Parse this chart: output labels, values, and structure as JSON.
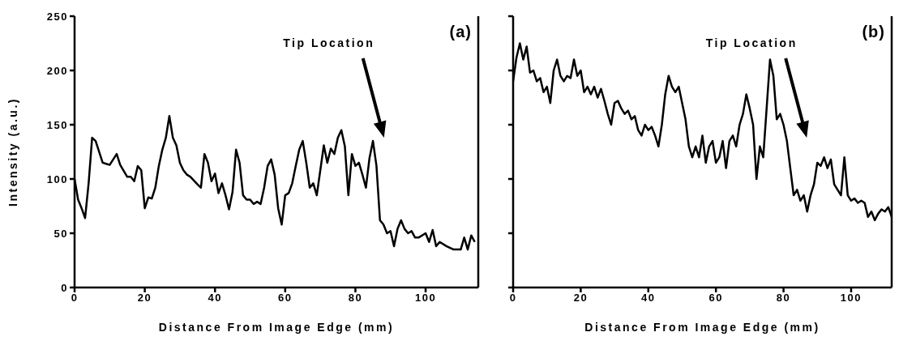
{
  "chart_data": [
    {
      "type": "line",
      "xlabel": "Distance From Image Edge (mm)",
      "ylabel": "Intensity (a.u.)",
      "xlim": [
        0,
        115
      ],
      "xticks": [
        0,
        20,
        40,
        60,
        80,
        100
      ],
      "ylim": [
        0,
        250
      ],
      "yticks": [
        0,
        50,
        100,
        150,
        200,
        250
      ],
      "marker": "none",
      "line_style": "solid",
      "annotations": [
        "(a)",
        "Tip Location"
      ],
      "series": [
        {
          "color": "#000000",
          "x": [
            0,
            1,
            2,
            3,
            4,
            5,
            6,
            8,
            9,
            10,
            11,
            12,
            13,
            15,
            16,
            17,
            18,
            19,
            20,
            21,
            22,
            23,
            24,
            25,
            26,
            27,
            28,
            29,
            30,
            31,
            32,
            33,
            35,
            36,
            37,
            38,
            39,
            40,
            41,
            42,
            43,
            44,
            45,
            46,
            47,
            48,
            49,
            50,
            51,
            52,
            53,
            54,
            55,
            56,
            57,
            58,
            59,
            60,
            61,
            62,
            63,
            64,
            65,
            66,
            67,
            68,
            69,
            70,
            71,
            72,
            73,
            74,
            75,
            76,
            77,
            78,
            79,
            80,
            81,
            82,
            83,
            84,
            85,
            86,
            87,
            88,
            89,
            90,
            91,
            92,
            93,
            94,
            95,
            96,
            97,
            98,
            100,
            101,
            102,
            103,
            104,
            106,
            108,
            110,
            111,
            112,
            113,
            114
          ],
          "values": [
            100,
            81,
            73,
            64,
            96,
            138,
            135,
            115,
            114,
            113,
            118,
            123,
            113,
            102,
            102,
            98,
            112,
            108,
            73,
            83,
            82,
            92,
            112,
            127,
            138,
            158,
            138,
            131,
            115,
            108,
            104,
            102,
            95,
            92,
            123,
            115,
            98,
            105,
            87,
            96,
            85,
            72,
            88,
            127,
            115,
            85,
            81,
            81,
            77,
            79,
            77,
            92,
            112,
            118,
            104,
            73,
            58,
            85,
            87,
            96,
            112,
            127,
            135,
            115,
            92,
            96,
            85,
            108,
            131,
            115,
            128,
            123,
            138,
            145,
            130,
            85,
            123,
            112,
            115,
            104,
            92,
            119,
            135,
            112,
            62,
            58,
            50,
            52,
            38,
            54,
            62,
            54,
            50,
            52,
            46,
            46,
            50,
            42,
            53,
            38,
            42,
            38,
            35,
            35,
            46,
            35,
            48,
            42
          ]
        }
      ]
    },
    {
      "type": "line",
      "xlabel": "Distance From Image Edge (mm)",
      "xlim": [
        0,
        112
      ],
      "xticks": [
        0,
        20,
        40,
        60,
        80,
        100
      ],
      "ylim": [
        0,
        250
      ],
      "yticks": [
        0,
        50,
        100,
        150,
        200,
        250
      ],
      "tick_labels": "x",
      "marker": "none",
      "line_style": "solid",
      "annotations": [
        "(b)",
        "Tip Location"
      ],
      "series": [
        {
          "color": "#000000",
          "x": [
            0,
            1,
            2,
            3,
            4,
            5,
            6,
            7,
            8,
            9,
            10,
            11,
            12,
            13,
            14,
            15,
            16,
            17,
            18,
            19,
            20,
            21,
            22,
            23,
            24,
            25,
            26,
            27,
            28,
            29,
            30,
            31,
            32,
            33,
            34,
            35,
            36,
            37,
            38,
            39,
            40,
            41,
            42,
            43,
            44,
            45,
            46,
            47,
            48,
            49,
            50,
            51,
            52,
            53,
            54,
            55,
            56,
            57,
            58,
            59,
            60,
            61,
            62,
            63,
            64,
            65,
            66,
            67,
            68,
            69,
            70,
            71,
            72,
            73,
            74,
            75,
            76,
            77,
            78,
            79,
            80,
            81,
            82,
            83,
            84,
            85,
            86,
            87,
            88,
            89,
            90,
            91,
            92,
            93,
            94,
            95,
            96,
            97,
            98,
            99,
            100,
            101,
            102,
            103,
            104,
            105,
            106,
            107,
            108,
            109,
            110,
            111,
            112
          ],
          "values": [
            190,
            212,
            225,
            210,
            222,
            198,
            200,
            190,
            193,
            180,
            185,
            170,
            200,
            210,
            195,
            190,
            195,
            193,
            210,
            195,
            200,
            180,
            185,
            178,
            185,
            175,
            183,
            172,
            160,
            150,
            170,
            172,
            165,
            160,
            163,
            155,
            158,
            145,
            140,
            150,
            145,
            148,
            140,
            130,
            150,
            178,
            195,
            185,
            180,
            185,
            170,
            155,
            130,
            120,
            130,
            120,
            140,
            115,
            130,
            135,
            115,
            120,
            135,
            110,
            135,
            140,
            130,
            150,
            160,
            178,
            165,
            150,
            100,
            130,
            120,
            165,
            210,
            195,
            155,
            160,
            150,
            135,
            110,
            85,
            90,
            80,
            85,
            70,
            85,
            95,
            115,
            112,
            120,
            110,
            118,
            95,
            90,
            85,
            120,
            85,
            80,
            82,
            78,
            80,
            78,
            65,
            70,
            62,
            68,
            72,
            70,
            74,
            65
          ]
        }
      ]
    }
  ]
}
